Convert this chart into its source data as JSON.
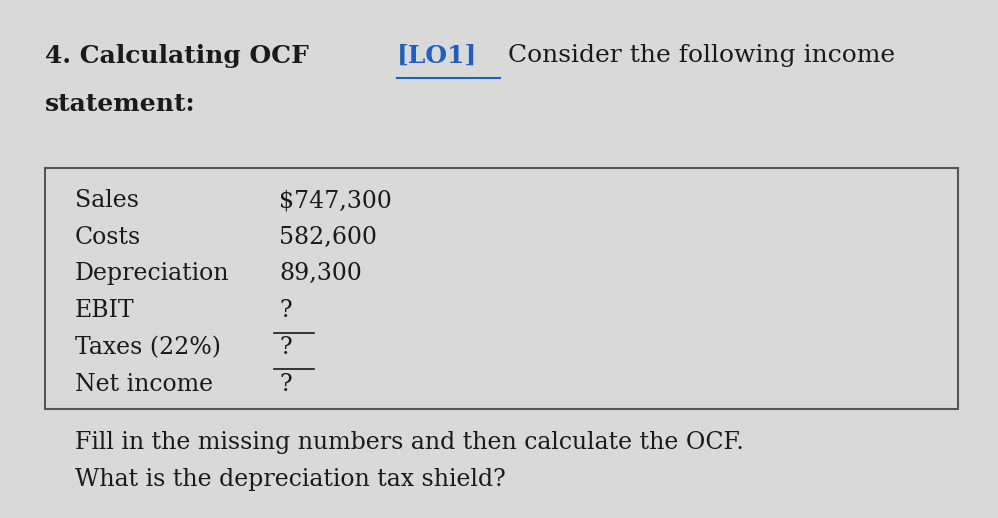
{
  "bg_color": "#d9d9d9",
  "title_bold_text": "4. Calculating OCF ",
  "title_link_text": "[LO1]",
  "title_link_color": "#1f5fc1",
  "title_regular_text": " Consider the following income",
  "title_second_line": "statement:",
  "title_fontsize": 18,
  "table_rows": [
    {
      "label": "Sales",
      "value": "$747,300",
      "underline": false
    },
    {
      "label": "Costs",
      "value": "582,600",
      "underline": false
    },
    {
      "label": "Depreciation",
      "value": "89,300",
      "underline": false
    },
    {
      "label": "EBIT",
      "value": "?",
      "underline": true
    },
    {
      "label": "Taxes (22%)",
      "value": "?",
      "underline": true
    },
    {
      "label": "Net income",
      "value": "?",
      "underline": false
    }
  ],
  "table_border_color": "#555555",
  "table_bg_color": "#d9d9d9",
  "table_fontsize": 17,
  "footer_text": "Fill in the missing numbers and then calculate the OCF.\nWhat is the depreciation tax shield?",
  "footer_fontsize": 17,
  "text_color": "#1a1a1a"
}
